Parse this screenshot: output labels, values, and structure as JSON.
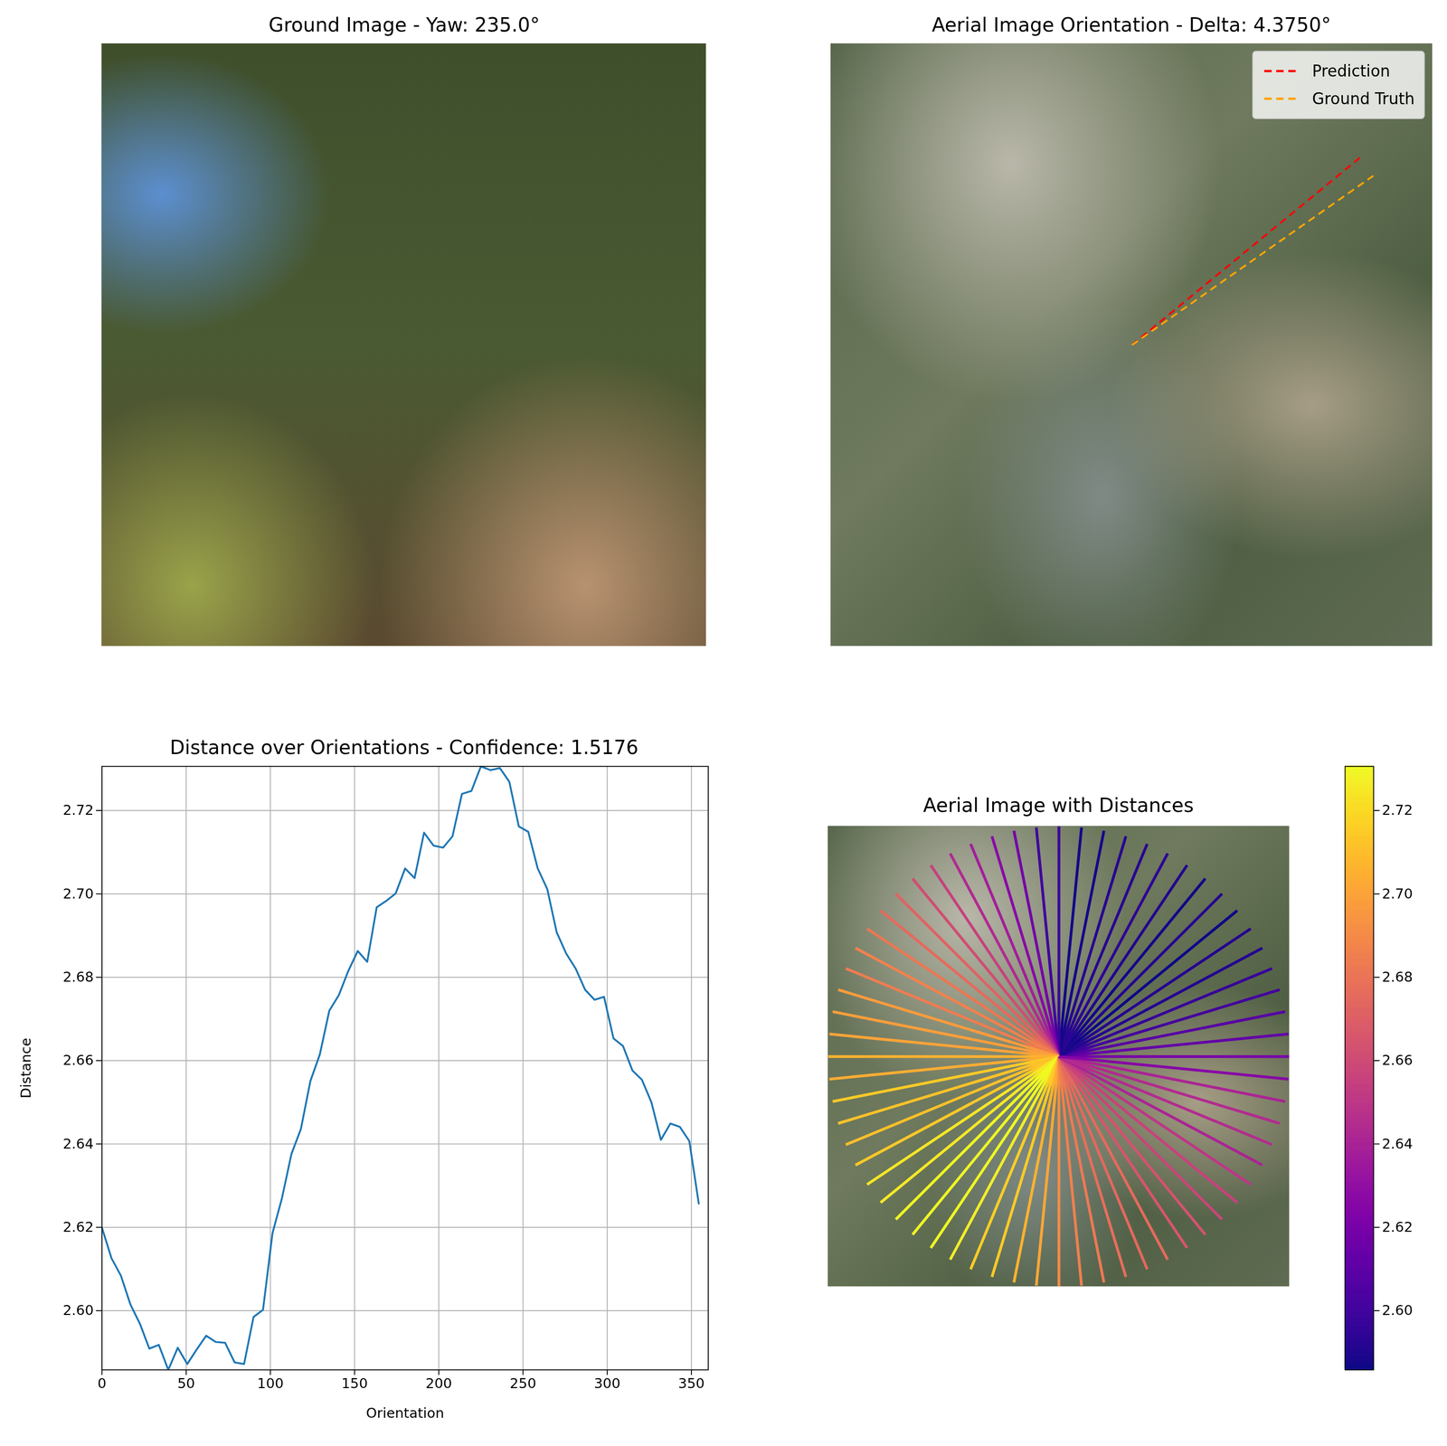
{
  "chart_data": [
    {
      "type": "image",
      "title": "Ground Image - Yaw: 235.0°"
    },
    {
      "type": "line",
      "title": "Aerial Image Orientation - Delta: 4.3750°",
      "legend": "upper right",
      "tick_labels": false,
      "series": [
        {
          "name": "Prediction",
          "color": "#ff0000",
          "line_style": "dashed",
          "angle": 39.375
        },
        {
          "name": "Ground Truth",
          "color": "#ffa500",
          "line_style": "dashed",
          "angle": 35.0
        }
      ]
    },
    {
      "type": "line",
      "title": "Distance over Orientations - Confidence: 1.5176",
      "x_label": "Orientation",
      "y_label": "Distance",
      "color": "#1f77b4",
      "grid": true,
      "x": [
        0,
        5.625,
        11.25,
        16.875,
        22.5,
        28.125,
        33.75,
        39.375,
        45,
        50.625,
        56.25,
        61.875,
        67.5,
        73.125,
        78.75,
        84.375,
        90,
        95.625,
        101.25,
        106.875,
        112.5,
        118.125,
        123.75,
        129.375,
        135,
        140.625,
        146.25,
        151.875,
        157.5,
        163.125,
        168.75,
        174.375,
        180,
        185.625,
        191.25,
        196.875,
        202.5,
        208.125,
        213.75,
        219.375,
        225,
        230.625,
        236.25,
        241.875,
        247.5,
        253.125,
        258.75,
        264.375,
        270,
        275.625,
        281.25,
        286.875,
        292.5,
        298.125,
        303.75,
        309.375,
        315,
        320.625,
        326.25,
        331.875,
        337.5,
        343.125,
        348.75,
        354.375
      ],
      "values": [
        2.6199,
        2.6126,
        2.6084,
        2.6015,
        2.5969,
        2.5909,
        2.5918,
        2.5858,
        2.5911,
        2.5872,
        2.5907,
        2.594,
        2.5925,
        2.5923,
        2.5876,
        2.5872,
        2.5985,
        2.6002,
        2.6186,
        2.627,
        2.6376,
        2.6436,
        2.6551,
        2.6615,
        2.672,
        2.6757,
        2.6815,
        2.6863,
        2.6837,
        2.6968,
        2.6983,
        2.7001,
        2.7061,
        2.7038,
        2.7147,
        2.7116,
        2.7111,
        2.7138,
        2.724,
        2.7247,
        2.7306,
        2.7297,
        2.7302,
        2.7269,
        2.7162,
        2.7149,
        2.7061,
        2.7012,
        2.6908,
        2.6857,
        2.6821,
        2.677,
        2.6746,
        2.6753,
        2.6653,
        2.6635,
        2.6576,
        2.6554,
        2.65,
        2.641,
        2.6449,
        2.6441,
        2.6407,
        2.6257
      ],
      "xlim": [
        0,
        360
      ],
      "ylim": [
        2.5858,
        2.7306
      ],
      "xticks": [
        0,
        50,
        100,
        150,
        200,
        250,
        300,
        350
      ],
      "yticks": [
        {
          "value": 2.6,
          "label": "2.60"
        },
        {
          "value": 2.62,
          "label": "2.62"
        },
        {
          "value": 2.64,
          "label": "2.64"
        },
        {
          "value": 2.66,
          "label": "2.66"
        },
        {
          "value": 2.68,
          "label": "2.68"
        },
        {
          "value": 2.7,
          "label": "2.70"
        },
        {
          "value": 2.72,
          "label": "2.72"
        }
      ]
    },
    {
      "type": "radial",
      "title": "Aerial Image with Distances",
      "tick_labels": false,
      "angles": [
        0,
        5.625,
        11.25,
        16.875,
        22.5,
        28.125,
        33.75,
        39.375,
        45,
        50.625,
        56.25,
        61.875,
        67.5,
        73.125,
        78.75,
        84.375,
        90,
        95.625,
        101.25,
        106.875,
        112.5,
        118.125,
        123.75,
        129.375,
        135,
        140.625,
        146.25,
        151.875,
        157.5,
        163.125,
        168.75,
        174.375,
        180,
        185.625,
        191.25,
        196.875,
        202.5,
        208.125,
        213.75,
        219.375,
        225,
        230.625,
        236.25,
        241.875,
        247.5,
        253.125,
        258.75,
        264.375,
        270,
        275.625,
        281.25,
        286.875,
        292.5,
        298.125,
        303.75,
        309.375,
        315,
        320.625,
        326.25,
        331.875,
        337.5,
        343.125,
        348.75,
        354.375
      ],
      "values": [
        2.6199,
        2.6126,
        2.6084,
        2.6015,
        2.5969,
        2.5909,
        2.5918,
        2.5858,
        2.5911,
        2.5872,
        2.5907,
        2.594,
        2.5925,
        2.5923,
        2.5876,
        2.5872,
        2.5985,
        2.6002,
        2.6186,
        2.627,
        2.6376,
        2.6436,
        2.6551,
        2.6615,
        2.672,
        2.6757,
        2.6815,
        2.6863,
        2.6837,
        2.6968,
        2.6983,
        2.7001,
        2.7061,
        2.7038,
        2.7147,
        2.7116,
        2.7111,
        2.7138,
        2.724,
        2.7247,
        2.7306,
        2.7297,
        2.7302,
        2.7269,
        2.7162,
        2.7149,
        2.7061,
        2.7012,
        2.6908,
        2.6857,
        2.6821,
        2.677,
        2.6746,
        2.6753,
        2.6653,
        2.6635,
        2.6576,
        2.6554,
        2.65,
        2.641,
        2.6449,
        2.6441,
        2.6407,
        2.6257
      ],
      "colorbar_range": [
        2.5858,
        2.7306
      ],
      "colorbar_ticks": [
        {
          "value": 2.6,
          "label": "2.60"
        },
        {
          "value": 2.62,
          "label": "2.62"
        },
        {
          "value": 2.64,
          "label": "2.64"
        },
        {
          "value": 2.66,
          "label": "2.66"
        },
        {
          "value": 2.68,
          "label": "2.68"
        },
        {
          "value": 2.7,
          "label": "2.70"
        },
        {
          "value": 2.72,
          "label": "2.72"
        }
      ]
    }
  ]
}
